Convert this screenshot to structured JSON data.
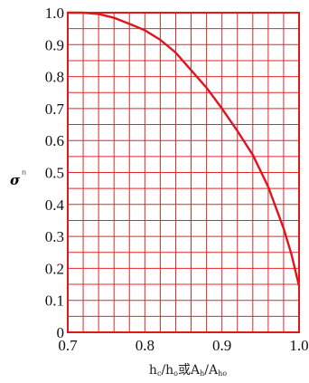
{
  "chart_data": {
    "type": "line",
    "ylabel": "σ",
    "ylabel_subscript": "n",
    "xlabel_parts": [
      "h",
      "c",
      "/h",
      "o",
      "或A",
      "h",
      "/A",
      "ho"
    ],
    "xlim": [
      0.7,
      1.0
    ],
    "ylim": [
      0,
      1.0
    ],
    "x_ticks": [
      0.7,
      0.8,
      0.9,
      1.0
    ],
    "x_tick_labels": [
      "0.7",
      "0.8",
      "0.9",
      "1.0"
    ],
    "y_ticks": [
      0,
      0.1,
      0.2,
      0.3,
      0.4,
      0.5,
      0.6,
      0.7,
      0.8,
      0.9,
      1.0
    ],
    "y_tick_labels": [
      "0",
      "0.1",
      "0.2",
      "0.3",
      "0.4",
      "0.5",
      "0.6",
      "0.7",
      "0.8",
      "0.9",
      "1.0"
    ],
    "grid": true,
    "grid_x_step": 0.02,
    "grid_y_step": 0.05,
    "series": [
      {
        "x": [
          0.7,
          0.72,
          0.74,
          0.76,
          0.78,
          0.8,
          0.82,
          0.84,
          0.86,
          0.88,
          0.9,
          0.92,
          0.94,
          0.96,
          0.98,
          0.99,
          1.0
        ],
        "y": [
          1.0,
          1.0,
          0.996,
          0.984,
          0.965,
          0.945,
          0.915,
          0.875,
          0.82,
          0.765,
          0.7,
          0.63,
          0.555,
          0.455,
          0.325,
          0.245,
          0.145
        ]
      }
    ],
    "colors": {
      "line": "#e0141e",
      "grid": "#e02828",
      "frame": "#e01818"
    }
  }
}
